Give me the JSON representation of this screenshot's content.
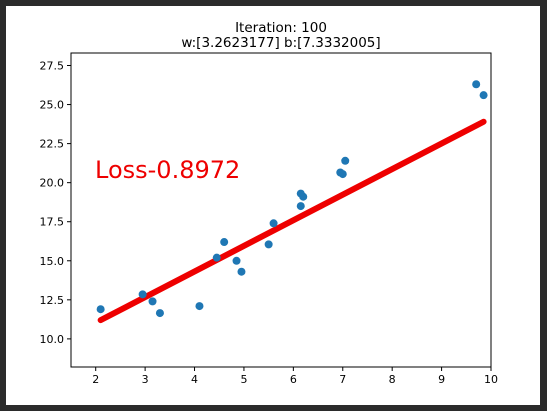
{
  "chart_data": {
    "type": "scatter",
    "title": "Iteration: 100",
    "subtitle": "w:[3.2623177] b:[7.3332005]",
    "annotation": "Loss-0.8972",
    "xlim": [
      1.5,
      10
    ],
    "ylim": [
      8.2,
      28.3
    ],
    "xticks": [
      2,
      3,
      4,
      5,
      6,
      7,
      8,
      9,
      10
    ],
    "yticks": [
      10.0,
      12.5,
      15.0,
      17.5,
      20.0,
      22.5,
      25.0,
      27.5
    ],
    "points": [
      [
        2.1,
        11.9
      ],
      [
        2.95,
        12.85
      ],
      [
        3.15,
        12.4
      ],
      [
        3.3,
        11.65
      ],
      [
        4.1,
        12.1
      ],
      [
        4.45,
        15.2
      ],
      [
        4.6,
        16.2
      ],
      [
        4.85,
        15.0
      ],
      [
        4.95,
        14.3
      ],
      [
        5.5,
        16.05
      ],
      [
        5.6,
        17.4
      ],
      [
        6.15,
        19.3
      ],
      [
        6.2,
        19.1
      ],
      [
        6.15,
        18.5
      ],
      [
        6.95,
        20.65
      ],
      [
        7.0,
        20.55
      ],
      [
        7.05,
        21.4
      ],
      [
        9.7,
        26.3
      ],
      [
        9.85,
        25.6
      ]
    ],
    "fit_line": {
      "x": [
        2.1,
        9.85
      ],
      "y": [
        11.2,
        23.9
      ]
    },
    "grid": false,
    "colors": {
      "points": "#1f77b4",
      "line": "#ee0000",
      "annotation": "#ee0000"
    }
  }
}
